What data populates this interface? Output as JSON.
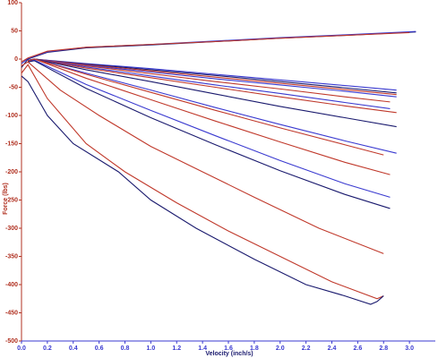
{
  "chart_data": {
    "type": "line",
    "xlabel": "Velocity (inch/s)",
    "ylabel": "Force (lbs)",
    "xlim": [
      0,
      3.2
    ],
    "ylim": [
      -500,
      100
    ],
    "xticks": [
      {
        "value": 0,
        "label": "0.0"
      },
      0.2,
      0.4,
      0.6,
      0.8,
      {
        "value": 1,
        "label": "1.0"
      },
      1.2,
      1.4,
      1.6,
      1.8,
      {
        "value": 2,
        "label": "2.0"
      },
      2.2,
      2.4,
      2.6,
      2.8,
      {
        "value": 3,
        "label": "3.0"
      }
    ],
    "yticks": [
      100,
      50,
      0,
      -50,
      -100,
      -150,
      -200,
      -250,
      -300,
      -350,
      -400,
      -450,
      -500
    ],
    "series": [
      {
        "color": "#1a1a6e",
        "x": [
          0,
          0.05,
          0.2,
          0.5,
          1,
          1.5,
          2,
          2.5,
          3.05
        ],
        "values": [
          -15,
          0,
          12,
          20,
          25,
          31,
          37,
          42,
          48
        ]
      },
      {
        "color": "#3a3ad0",
        "x": [
          0,
          0.05,
          0.2,
          0.5,
          1,
          1.5,
          2,
          2.5,
          3.05
        ],
        "values": [
          -8,
          1,
          13,
          21,
          26,
          32,
          38,
          43,
          49
        ]
      },
      {
        "color": "#c0392b",
        "x": [
          0,
          0.05,
          0.2,
          0.5,
          1,
          1.5,
          2,
          2.5,
          3.0
        ],
        "values": [
          -5,
          2,
          14,
          21,
          26,
          31,
          37,
          42,
          47
        ]
      },
      {
        "color": "#3a3ad0",
        "x": [
          0.05,
          0.1,
          0.5,
          1,
          1.5,
          2,
          2.5,
          2.9
        ],
        "values": [
          -2,
          0,
          -8,
          -17,
          -27,
          -37,
          -47,
          -55
        ]
      },
      {
        "color": "#1a1a6e",
        "x": [
          0.05,
          0.1,
          0.5,
          1,
          1.5,
          2,
          2.5,
          2.9
        ],
        "values": [
          -2,
          0,
          -9,
          -19,
          -29,
          -40,
          -51,
          -60
        ]
      },
      {
        "color": "#c0392b",
        "x": [
          0.05,
          0.1,
          0.5,
          1,
          1.5,
          2,
          2.5,
          2.9
        ],
        "values": [
          -3,
          0,
          -10,
          -21,
          -32,
          -43,
          -54,
          -63
        ]
      },
      {
        "color": "#3a3ad0",
        "x": [
          0.05,
          0.1,
          0.5,
          1,
          1.5,
          2,
          2.5,
          2.9
        ],
        "values": [
          -3,
          0,
          -11,
          -23,
          -35,
          -46,
          -57,
          -67
        ]
      },
      {
        "color": "#c0392b",
        "x": [
          0.05,
          0.1,
          0.5,
          1,
          1.5,
          2,
          2.5,
          2.85
        ],
        "values": [
          -3,
          0,
          -12,
          -26,
          -40,
          -53,
          -67,
          -76
        ]
      },
      {
        "color": "#3a3ad0",
        "x": [
          0.05,
          0.1,
          0.5,
          1,
          1.5,
          2,
          2.5,
          2.85
        ],
        "values": [
          -3,
          0,
          -14,
          -30,
          -46,
          -61,
          -77,
          -88
        ]
      },
      {
        "color": "#c0392b",
        "x": [
          0.05,
          0.1,
          0.5,
          1,
          1.5,
          2,
          2.5,
          2.9
        ],
        "values": [
          -3,
          0,
          -16,
          -33,
          -50,
          -67,
          -83,
          -95
        ]
      },
      {
        "color": "#1a1a6e",
        "x": [
          0.05,
          0.1,
          0.5,
          1,
          1.5,
          2,
          2.5,
          2.9
        ],
        "values": [
          -4,
          0,
          -19,
          -40,
          -62,
          -84,
          -104,
          -120
        ]
      },
      {
        "color": "#3a3ad0",
        "x": [
          0.05,
          0.1,
          0.5,
          1,
          1.5,
          2,
          2.5,
          2.9
        ],
        "values": [
          -4,
          0,
          -25,
          -55,
          -86,
          -116,
          -145,
          -167
        ]
      },
      {
        "color": "#c0392b",
        "x": [
          0.05,
          0.1,
          0.5,
          1,
          1.5,
          2,
          2.5,
          2.8
        ],
        "values": [
          -4,
          0,
          -27,
          -59,
          -91,
          -122,
          -152,
          -170
        ]
      },
      {
        "color": "#c0392b",
        "x": [
          0.05,
          0.1,
          0.5,
          1,
          1.5,
          2,
          2.5,
          2.85
        ],
        "values": [
          -4,
          0,
          -34,
          -72,
          -110,
          -147,
          -183,
          -205
        ]
      },
      {
        "color": "#3a3ad0",
        "x": [
          0.05,
          0.1,
          0.5,
          1,
          1.5,
          2,
          2.5,
          2.85
        ],
        "values": [
          -5,
          -2,
          -45,
          -91,
          -136,
          -180,
          -221,
          -245
        ]
      },
      {
        "color": "#1a1a6e",
        "x": [
          0.05,
          0.1,
          0.5,
          1,
          1.5,
          2,
          2.5,
          2.85
        ],
        "values": [
          -5,
          -3,
          -52,
          -104,
          -152,
          -198,
          -240,
          -265
        ]
      },
      {
        "color": "#c0392b",
        "x": [
          0,
          0.05,
          0.3,
          0.6,
          1,
          1.4,
          1.8,
          2.3,
          2.8
        ],
        "values": [
          -12,
          -5,
          -55,
          -100,
          -155,
          -200,
          -245,
          -300,
          -345
        ]
      },
      {
        "color": "#c0392b",
        "x": [
          0,
          0.05,
          0.2,
          0.5,
          0.8,
          1.2,
          1.6,
          2,
          2.4,
          2.75,
          2.8
        ],
        "values": [
          -25,
          -10,
          -70,
          -150,
          -200,
          -255,
          -305,
          -350,
          -395,
          -425,
          -420
        ]
      },
      {
        "color": "#1a1a6e",
        "x": [
          0,
          0.05,
          0.2,
          0.4,
          0.75,
          1.0,
          1.35,
          1.8,
          2.2,
          2.5,
          2.7,
          2.75,
          2.8
        ],
        "values": [
          -30,
          -40,
          -100,
          -150,
          -200,
          -250,
          -300,
          -355,
          -400,
          -420,
          -435,
          -430,
          -420
        ]
      }
    ]
  }
}
